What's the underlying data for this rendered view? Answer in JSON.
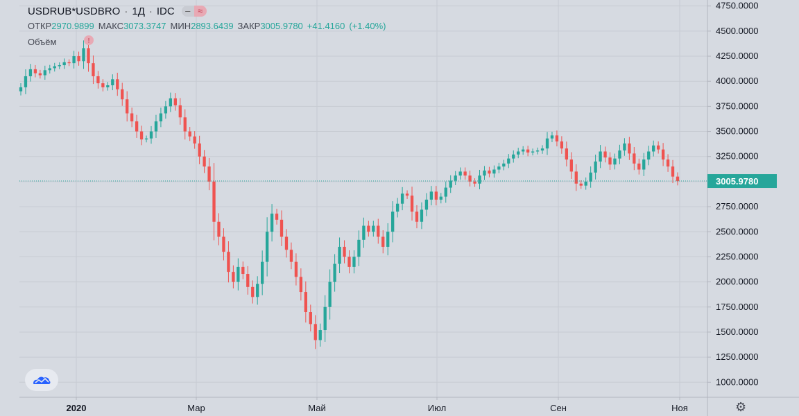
{
  "header": {
    "symbol": "USDRUB*USDBRO",
    "interval": "1Д",
    "source": "IDC",
    "minus_icon": "minus-icon",
    "wave_icon": "wave-icon",
    "open_label": "ОТКР",
    "open_value": "2970.9899",
    "high_label": "МАКС",
    "high_value": "3073.3747",
    "low_label": "МИН",
    "low_value": "2893.6439",
    "close_label": "ЗАКР",
    "close_value": "3005.9780",
    "change": "+41.4160",
    "change_pct": "(+1.40%)",
    "volume_label": "Объём"
  },
  "colors": {
    "up": "#26a69a",
    "down": "#ef5350",
    "grid": "#c7cbd2",
    "background": "#d6dae1",
    "price_badge": "#26a69a"
  },
  "chart_data": {
    "type": "candlestick",
    "x_labels": [
      "2020",
      "Мар",
      "Май",
      "Июл",
      "Сен",
      "Ноя"
    ],
    "y_ticks": [
      "4750.0000",
      "4500.0000",
      "4250.0000",
      "4000.0000",
      "3750.0000",
      "3500.0000",
      "3250.0000",
      "3000.0000",
      "2750.0000",
      "2500.0000",
      "2250.0000",
      "2000.0000",
      "1750.0000",
      "1500.0000",
      "1250.0000",
      "1000.0000"
    ],
    "ylim": [
      850,
      4810
    ],
    "last_price": 3005.978,
    "last_price_label": "3005.9780",
    "closes": [
      3940,
      4050,
      4120,
      4080,
      4060,
      4110,
      4130,
      4150,
      4160,
      4190,
      4180,
      4250,
      4200,
      4330,
      4180,
      4050,
      3980,
      3940,
      3960,
      4020,
      3920,
      3820,
      3680,
      3600,
      3500,
      3420,
      3430,
      3500,
      3600,
      3680,
      3750,
      3830,
      3760,
      3640,
      3500,
      3450,
      3380,
      3250,
      3150,
      3000,
      2600,
      2450,
      2300,
      2100,
      2000,
      2150,
      2080,
      1950,
      1850,
      1980,
      2200,
      2500,
      2680,
      2620,
      2450,
      2320,
      2200,
      2050,
      1900,
      1700,
      1580,
      1420,
      1520,
      1750,
      2000,
      2180,
      2350,
      2250,
      2150,
      2250,
      2420,
      2560,
      2500,
      2560,
      2450,
      2350,
      2500,
      2700,
      2780,
      2880,
      2860,
      2700,
      2600,
      2720,
      2820,
      2900,
      2820,
      2850,
      2940,
      3010,
      3060,
      3100,
      3060,
      3000,
      2980,
      3060,
      3110,
      3080,
      3120,
      3150,
      3180,
      3230,
      3270,
      3300,
      3320,
      3290,
      3300,
      3310,
      3330,
      3430,
      3460,
      3400,
      3330,
      3220,
      3100,
      2980,
      2960,
      3000,
      3090,
      3200,
      3300,
      3240,
      3170,
      3230,
      3310,
      3380,
      3280,
      3180,
      3120,
      3220,
      3300,
      3360,
      3320,
      3220,
      3150,
      3050,
      3005
    ]
  }
}
